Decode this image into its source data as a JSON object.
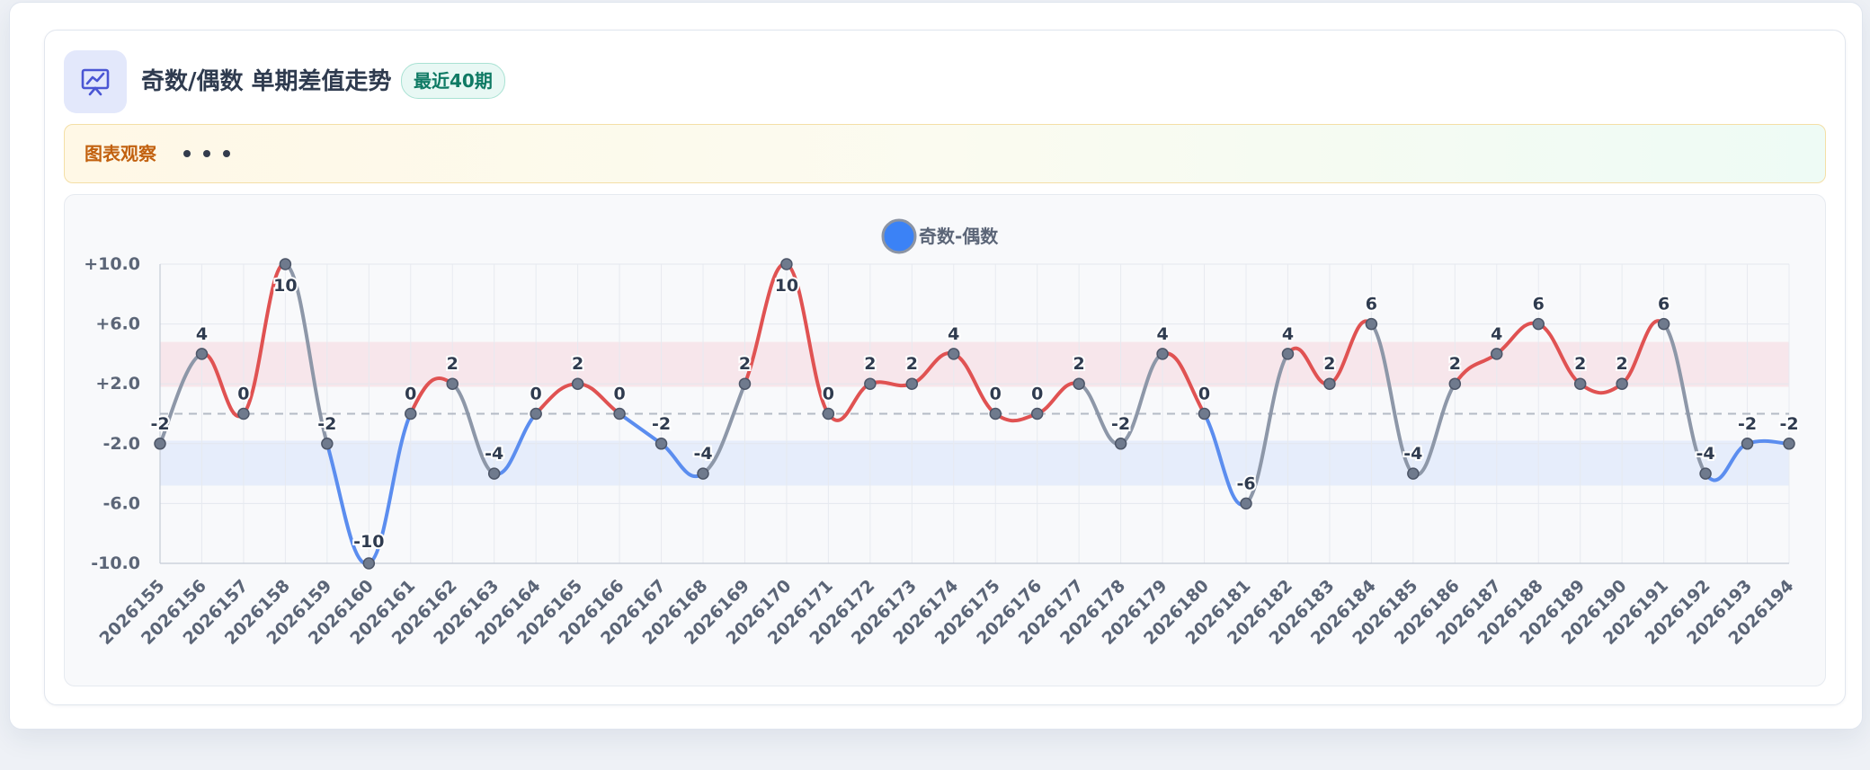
{
  "header": {
    "title": "奇数/偶数 单期差值走势",
    "badge": "最近40期",
    "icon": "presentation-chart-icon"
  },
  "observation": {
    "label": "图表观察"
  },
  "colors": {
    "positive": "#e05252",
    "negative": "#5b8def",
    "neutral": "#8d97a8",
    "legend": "#3b82f6",
    "band_positive": "#f7e3e7",
    "band_negative": "#e3ebfa"
  },
  "chart_data": {
    "type": "line",
    "title": "",
    "xlabel": "",
    "ylabel": "",
    "legend": {
      "position": "top-center"
    },
    "grid": true,
    "ylim": [
      -10,
      10
    ],
    "y_ticks": [
      10,
      6,
      2,
      -2,
      -6,
      -10
    ],
    "y_tick_labels": [
      "+10.0",
      "+6.0",
      "+2.0",
      "-2.0",
      "-6.0",
      "-10.0"
    ],
    "bands": [
      {
        "from": 1.8,
        "to": 4.8,
        "color": "positive"
      },
      {
        "from": -1.8,
        "to": -4.8,
        "color": "negative"
      }
    ],
    "reference_line": 0,
    "categories": [
      "2026155",
      "2026156",
      "2026157",
      "2026158",
      "2026159",
      "2026160",
      "2026161",
      "2026162",
      "2026163",
      "2026164",
      "2026165",
      "2026166",
      "2026167",
      "2026168",
      "2026169",
      "2026170",
      "2026171",
      "2026172",
      "2026173",
      "2026174",
      "2026175",
      "2026176",
      "2026177",
      "2026178",
      "2026179",
      "2026180",
      "2026181",
      "2026182",
      "2026183",
      "2026184",
      "2026185",
      "2026186",
      "2026187",
      "2026188",
      "2026189",
      "2026190",
      "2026191",
      "2026192",
      "2026193",
      "2026194"
    ],
    "series": [
      {
        "name": "奇数-偶数",
        "values": [
          -2,
          4,
          0,
          10,
          -2,
          -10,
          0,
          2,
          -4,
          0,
          2,
          0,
          -2,
          -4,
          2,
          10,
          0,
          2,
          2,
          4,
          0,
          0,
          2,
          -2,
          4,
          0,
          -6,
          4,
          2,
          6,
          -4,
          2,
          4,
          6,
          2,
          2,
          6,
          -4,
          -2,
          -2
        ]
      }
    ]
  }
}
